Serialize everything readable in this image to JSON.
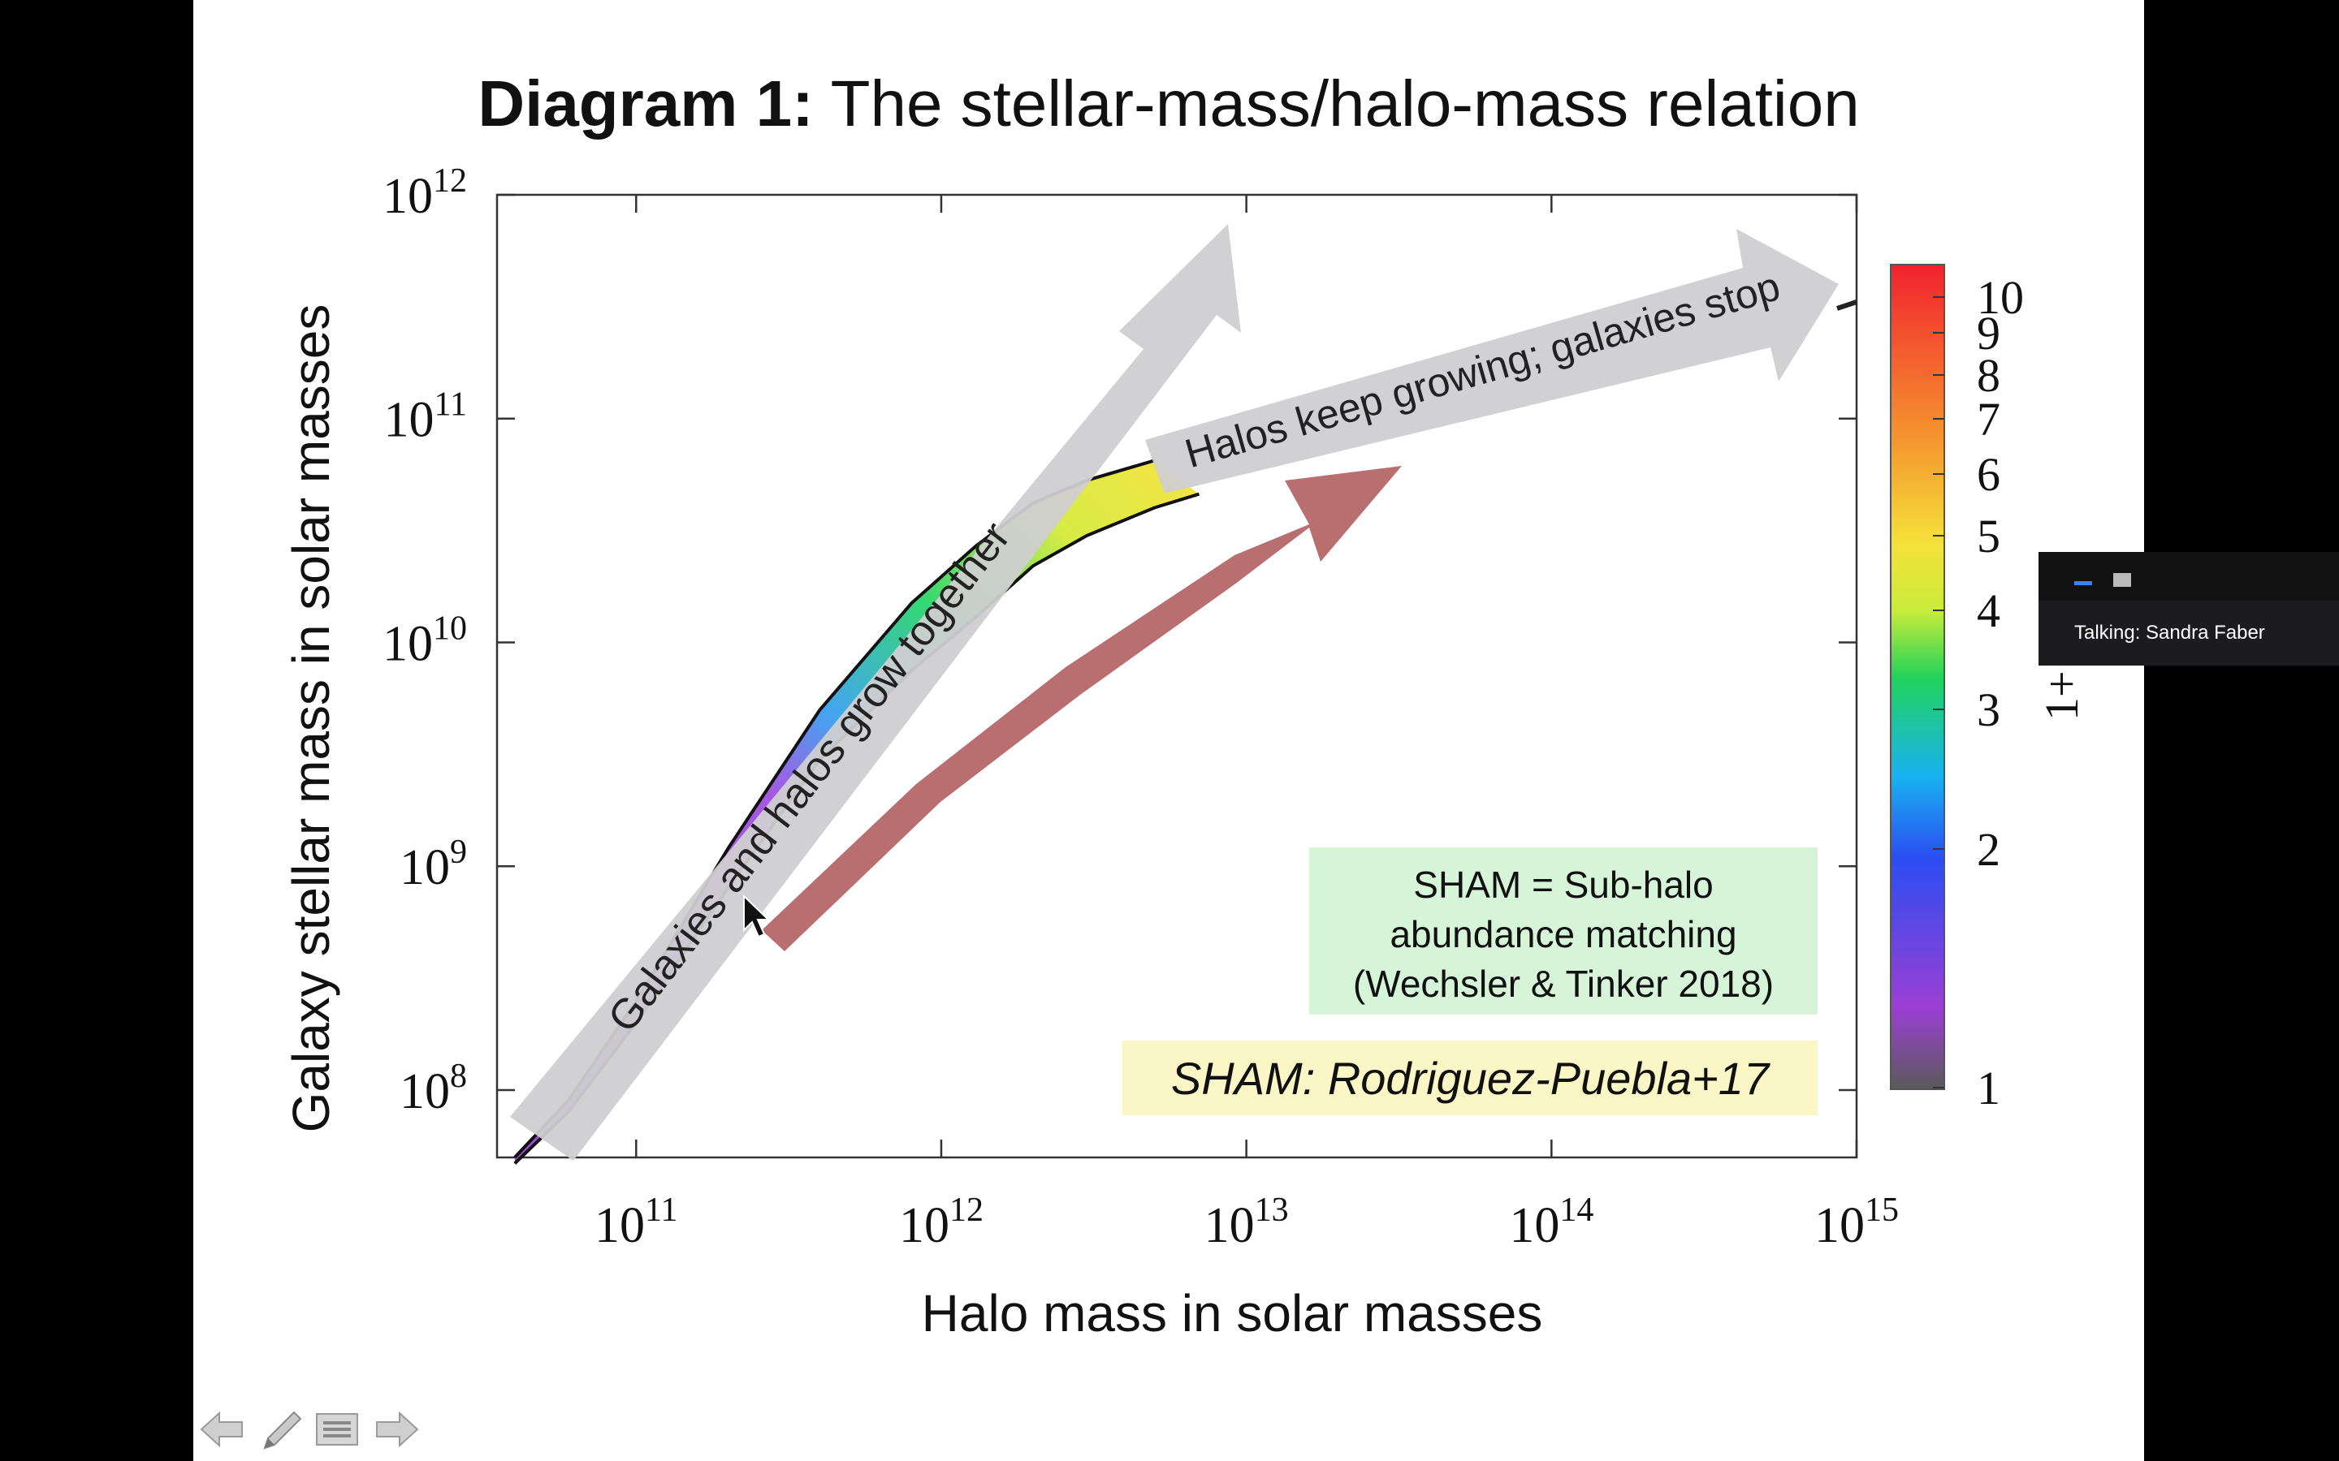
{
  "slide": {
    "title_bold": "Diagram 1:",
    "title_rest": " The stellar-mass/halo-mass relation"
  },
  "chart_data": {
    "type": "line",
    "x_scale": "log",
    "y_scale": "log",
    "xlabel": "Halo mass in solar masses",
    "ylabel": "Galaxy stellar mass in solar masses",
    "xlim": [
      35000000000.0,
      1000000000000000.0
    ],
    "ylim": [
      50000000.0,
      1000000000000.0
    ],
    "x_ticks": [
      {
        "base": "10",
        "exp": "11"
      },
      {
        "base": "10",
        "exp": "12"
      },
      {
        "base": "10",
        "exp": "13"
      },
      {
        "base": "10",
        "exp": "14"
      },
      {
        "base": "10",
        "exp": "15"
      }
    ],
    "y_ticks": [
      {
        "base": "10",
        "exp": "8"
      },
      {
        "base": "10",
        "exp": "9"
      },
      {
        "base": "10",
        "exp": "10"
      },
      {
        "base": "10",
        "exp": "11"
      },
      {
        "base": "10",
        "exp": "12"
      }
    ],
    "series": [
      {
        "x": [
          40000000000.0,
          60000000000.0,
          100000000000.0,
          200000000000.0,
          400000000000.0,
          800000000000.0,
          1300000000000.0,
          2000000000000.0,
          3000000000000.0,
          5000000000000.0
        ],
        "y": [
          50000000.0,
          90000000.0,
          250000000.0,
          1200000000.0,
          5000000000.0,
          15000000000.0,
          27000000000.0,
          42000000000.0,
          53000000000.0,
          65000000000.0
        ]
      },
      {
        "x": [
          40000000000.0,
          60000000000.0,
          100000000000.0,
          200000000000.0,
          400000000000.0,
          800000000000.0,
          1300000000000.0,
          2000000000000.0,
          3000000000000.0,
          5000000000000.0,
          7000000000000.0
        ],
        "y": [
          47000000.0,
          80000000.0,
          200000000.0,
          800000000.0,
          3000000000.0,
          7500000000.0,
          13000000000.0,
          22000000000.0,
          30000000000.0,
          40000000000.0,
          46000000000.0
        ]
      }
    ],
    "colorbar": {
      "label": "1+",
      "ticks": [
        "10",
        "9",
        "8",
        "7",
        "6",
        "5",
        "4",
        "3",
        "2",
        "1"
      ]
    },
    "annotations": {
      "arrow_up": "Galaxies and halos grow together",
      "arrow_right": "Halos keep growing; galaxies stop",
      "box_green": [
        "SHAM = Sub-halo",
        "abundance matching",
        "(Wechsler & Tinker 2018)"
      ],
      "box_yellow": "SHAM: Rodriguez-Puebla+17"
    }
  },
  "panel": {
    "label": "Talking: Sandra Faber"
  },
  "colors": {
    "arrow_gray": "#d0d0d2",
    "arrow_red": "#b96e70",
    "box_green": "#d6f5d8",
    "box_yellow": "#fbf6c5"
  }
}
